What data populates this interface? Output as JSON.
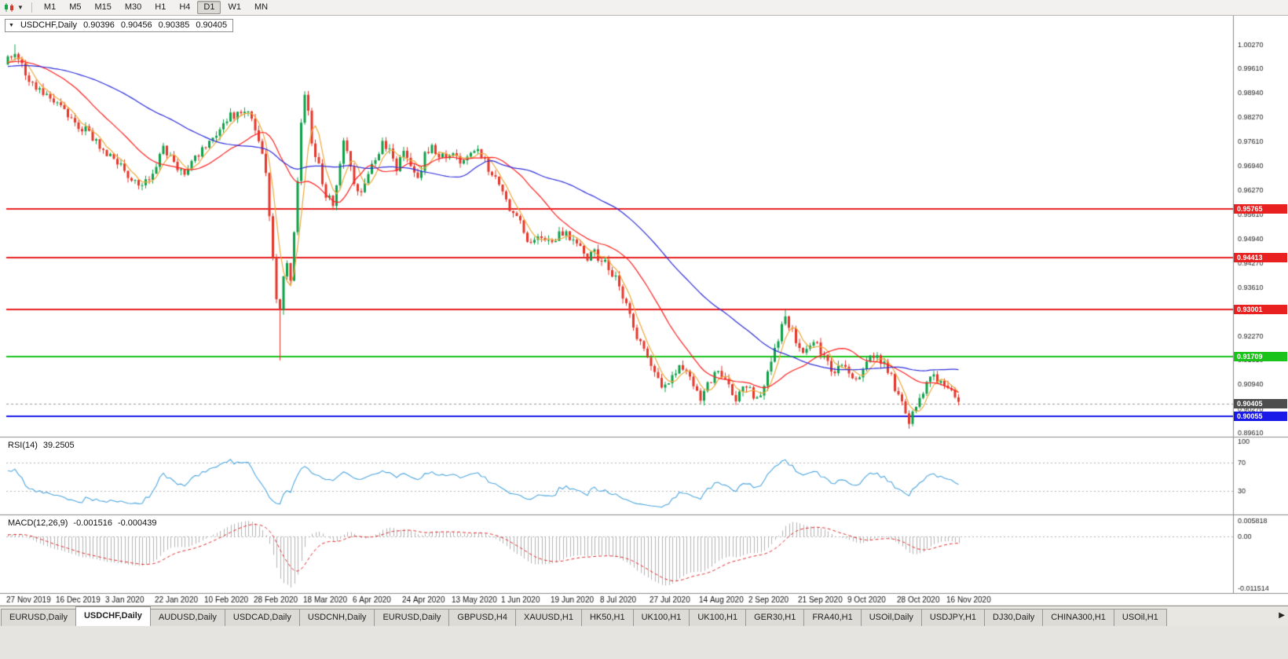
{
  "toolbar": {
    "timeframes": [
      "M1",
      "M5",
      "M15",
      "M30",
      "H1",
      "H4",
      "D1",
      "W1",
      "MN"
    ],
    "active_timeframe": "D1"
  },
  "chart_header": {
    "symbol": "USDCHF,Daily",
    "open": "0.90396",
    "high": "0.90456",
    "low": "0.90385",
    "close": "0.90405"
  },
  "indicators": {
    "rsi_label": "RSI(14)",
    "rsi_value": "39.2505",
    "macd_label": "MACD(12,26,9)",
    "macd_main": "-0.001516",
    "macd_signal": "-0.000439"
  },
  "tabbar": {
    "active_index": 1,
    "scroll_right_icon": "▶",
    "tabs": [
      "EURUSD,Daily",
      "USDCHF,Daily",
      "AUDUSD,Daily",
      "USDCAD,Daily",
      "USDCNH,Daily",
      "EURUSD,Daily",
      "GBPUSD,H4",
      "XAUUSD,H1",
      "HK50,H1",
      "UK100,H1",
      "UK100,H1",
      "GER30,H1",
      "FRA40,H1",
      "USOil,Daily",
      "USDJPY,H1",
      "DJ30,Daily",
      "CHINA300,H1",
      "USOil,H1"
    ]
  },
  "chart_data": {
    "type": "candlestick",
    "symbol": "USDCHF",
    "timeframe": "Daily",
    "candle_up_color": "#0FA14A",
    "candle_down_color": "#E5372C",
    "x_labels": [
      "27 Nov 2019",
      "16 Dec 2019",
      "3 Jan 2020",
      "22 Jan 2020",
      "10 Feb 2020",
      "28 Feb 2020",
      "18 Mar 2020",
      "6 Apr 2020",
      "24 Apr 2020",
      "13 May 2020",
      "1 Jun 2020",
      "19 Jun 2020",
      "8 Jul 2020",
      "27 Jul 2020",
      "14 Aug 2020",
      "2 Sep 2020",
      "21 Sep 2020",
      "9 Oct 2020",
      "28 Oct 2020",
      "16 Nov 2020"
    ],
    "price_axis_labels": [
      "1.00270",
      "0.99610",
      "0.98940",
      "0.98270",
      "0.97610",
      "0.96940",
      "0.96270",
      "0.95610",
      "0.94940",
      "0.94270",
      "0.93610",
      "0.92940",
      "0.92270",
      "0.91610",
      "0.90940",
      "0.90270",
      "0.89610"
    ],
    "levels": [
      {
        "value": "0.95765",
        "price": 0.95765,
        "color": "#E82020",
        "type": "resistance"
      },
      {
        "value": "0.94413",
        "price": 0.94413,
        "color": "#E82020",
        "type": "resistance"
      },
      {
        "value": "0.93001",
        "price": 0.93001,
        "color": "#E82020",
        "type": "resistance"
      },
      {
        "value": "0.91709",
        "price": 0.91709,
        "color": "#19C319",
        "type": "support"
      },
      {
        "value": "0.90055",
        "price": 0.90055,
        "color": "#1A1AE8",
        "type": "support"
      }
    ],
    "current_price": {
      "value": "0.90405",
      "price": 0.90405
    },
    "moving_averages": [
      {
        "period": 5,
        "color": "#EEA93C"
      },
      {
        "period": 21,
        "color": "#FF2020"
      },
      {
        "period": 55,
        "color": "#2E2EDC"
      }
    ],
    "rsi": {
      "period": 14,
      "color": "#4DA6E0",
      "axis_labels": [
        "100",
        "70",
        "30"
      ],
      "guide_levels": [
        70,
        30
      ]
    },
    "macd": {
      "axis_top": "0.005818",
      "axis_zero": "0.00",
      "axis_bottom": "-0.011514",
      "hist_color": "#B4B4B4",
      "signal_color": "#E03030"
    },
    "candles": {
      "count": 270,
      "anchors": [
        [
          -60,
          0.9945
        ],
        [
          -40,
          0.996
        ],
        [
          -20,
          0.997
        ],
        [
          0,
          0.9985
        ],
        [
          2,
          1.0005
        ],
        [
          5,
          0.9945
        ],
        [
          9,
          0.99
        ],
        [
          14,
          0.9868
        ],
        [
          18,
          0.9825
        ],
        [
          22,
          0.979
        ],
        [
          26,
          0.9745
        ],
        [
          30,
          0.9718
        ],
        [
          34,
          0.966
        ],
        [
          38,
          0.9632
        ],
        [
          40,
          0.9658
        ],
        [
          44,
          0.9745
        ],
        [
          47,
          0.97
        ],
        [
          50,
          0.9682
        ],
        [
          54,
          0.9722
        ],
        [
          58,
          0.9778
        ],
        [
          62,
          0.982
        ],
        [
          66,
          0.985
        ],
        [
          69,
          0.9832
        ],
        [
          71,
          0.976
        ],
        [
          73,
          0.968
        ],
        [
          74,
          0.9565
        ],
        [
          75,
          0.9455
        ],
        [
          76,
          0.934
        ],
        [
          77,
          0.929
        ],
        [
          78,
          0.9385
        ],
        [
          79,
          0.943
        ],
        [
          80,
          0.938
        ],
        [
          81,
          0.95
        ],
        [
          82,
          0.965
        ],
        [
          83,
          0.982
        ],
        [
          84,
          0.9878
        ],
        [
          85,
          0.984
        ],
        [
          86,
          0.9755
        ],
        [
          88,
          0.97
        ],
        [
          90,
          0.961
        ],
        [
          92,
          0.959
        ],
        [
          94,
          0.9705
        ],
        [
          95,
          0.9775
        ],
        [
          97,
          0.97
        ],
        [
          98,
          0.9645
        ],
        [
          100,
          0.962
        ],
        [
          102,
          0.968
        ],
        [
          104,
          0.972
        ],
        [
          106,
          0.9758
        ],
        [
          108,
          0.973
        ],
        [
          110,
          0.9692
        ],
        [
          112,
          0.9738
        ],
        [
          114,
          0.97
        ],
        [
          116,
          0.9662
        ],
        [
          118,
          0.972
        ],
        [
          120,
          0.9742
        ],
        [
          122,
          0.9728
        ],
        [
          124,
          0.9712
        ],
        [
          126,
          0.9722
        ],
        [
          128,
          0.97
        ],
        [
          130,
          0.9728
        ],
        [
          132,
          0.9742
        ],
        [
          134,
          0.9718
        ],
        [
          136,
          0.969
        ],
        [
          138,
          0.9652
        ],
        [
          140,
          0.9615
        ],
        [
          142,
          0.9582
        ],
        [
          144,
          0.956
        ],
        [
          146,
          0.9512
        ],
        [
          148,
          0.9482
        ],
        [
          150,
          0.951
        ],
        [
          152,
          0.9492
        ],
        [
          154,
          0.9476
        ],
        [
          156,
          0.9508
        ],
        [
          158,
          0.952
        ],
        [
          160,
          0.9482
        ],
        [
          162,
          0.9462
        ],
        [
          164,
          0.944
        ],
        [
          166,
          0.9452
        ],
        [
          168,
          0.9438
        ],
        [
          170,
          0.941
        ],
        [
          172,
          0.9388
        ],
        [
          174,
          0.934
        ],
        [
          176,
          0.9282
        ],
        [
          178,
          0.923
        ],
        [
          180,
          0.918
        ],
        [
          182,
          0.9142
        ],
        [
          184,
          0.91
        ],
        [
          186,
          0.9082
        ],
        [
          188,
          0.9118
        ],
        [
          190,
          0.9148
        ],
        [
          192,
          0.912
        ],
        [
          194,
          0.9092
        ],
        [
          196,
          0.9062
        ],
        [
          198,
          0.9092
        ],
        [
          200,
          0.9128
        ],
        [
          202,
          0.911
        ],
        [
          204,
          0.9082
        ],
        [
          206,
          0.9052
        ],
        [
          208,
          0.909
        ],
        [
          210,
          0.9078
        ],
        [
          212,
          0.9052
        ],
        [
          214,
          0.9092
        ],
        [
          216,
          0.915
        ],
        [
          218,
          0.922
        ],
        [
          220,
          0.9282
        ],
        [
          222,
          0.924
        ],
        [
          224,
          0.9182
        ],
        [
          226,
          0.92
        ],
        [
          228,
          0.9215
        ],
        [
          230,
          0.918
        ],
        [
          232,
          0.9152
        ],
        [
          234,
          0.9132
        ],
        [
          236,
          0.9146
        ],
        [
          238,
          0.913
        ],
        [
          240,
          0.9112
        ],
        [
          242,
          0.914
        ],
        [
          244,
          0.9162
        ],
        [
          246,
          0.9175
        ],
        [
          248,
          0.915
        ],
        [
          250,
          0.9112
        ],
        [
          252,
          0.9062
        ],
        [
          254,
          0.902
        ],
        [
          255,
          0.8992
        ],
        [
          256,
          0.9012
        ],
        [
          258,
          0.9062
        ],
        [
          260,
          0.91
        ],
        [
          262,
          0.912
        ],
        [
          264,
          0.9102
        ],
        [
          266,
          0.9082
        ],
        [
          268,
          0.9058
        ],
        [
          269,
          0.904
        ]
      ],
      "spikes": [
        {
          "i": 2,
          "high": 1.0027
        },
        {
          "i": 77,
          "low": 0.916
        },
        {
          "i": 84,
          "high": 0.9896
        },
        {
          "i": 220,
          "high": 0.9298
        },
        {
          "i": 255,
          "low": 0.8979
        }
      ]
    }
  }
}
